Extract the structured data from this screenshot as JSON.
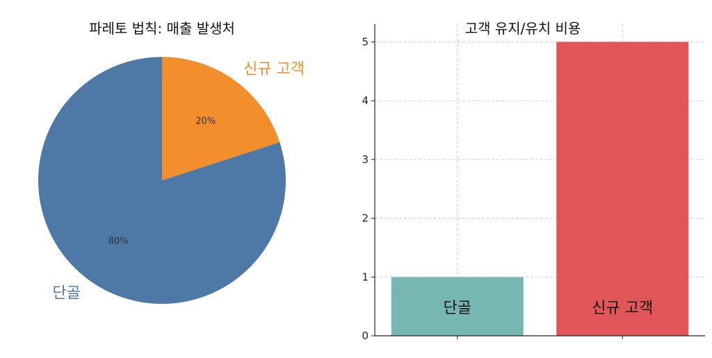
{
  "chart_data": [
    {
      "type": "pie",
      "title": "파레토 법칙: 매출 발생처",
      "categories": [
        "단골",
        "신규 고객"
      ],
      "values": [
        80,
        20
      ],
      "value_labels": [
        "80%",
        "20%"
      ],
      "colors": [
        "#4e79a7",
        "#f28e2b"
      ],
      "start_angle_deg": 90,
      "direction": "clockwise",
      "slice_order": "신규 고객 first from top, then 단골"
    },
    {
      "type": "bar",
      "title": "고객 유지/유치 비용",
      "categories": [
        "단골",
        "신규 고객"
      ],
      "values": [
        1,
        5
      ],
      "colors": [
        "#76b7b2",
        "#e15759"
      ],
      "ylim": [
        0,
        5.3
      ],
      "yticks": [
        0,
        1,
        2,
        3,
        4,
        5
      ],
      "xlabel": "",
      "ylabel": "",
      "grid": true,
      "labels_inside_bars": true
    }
  ]
}
